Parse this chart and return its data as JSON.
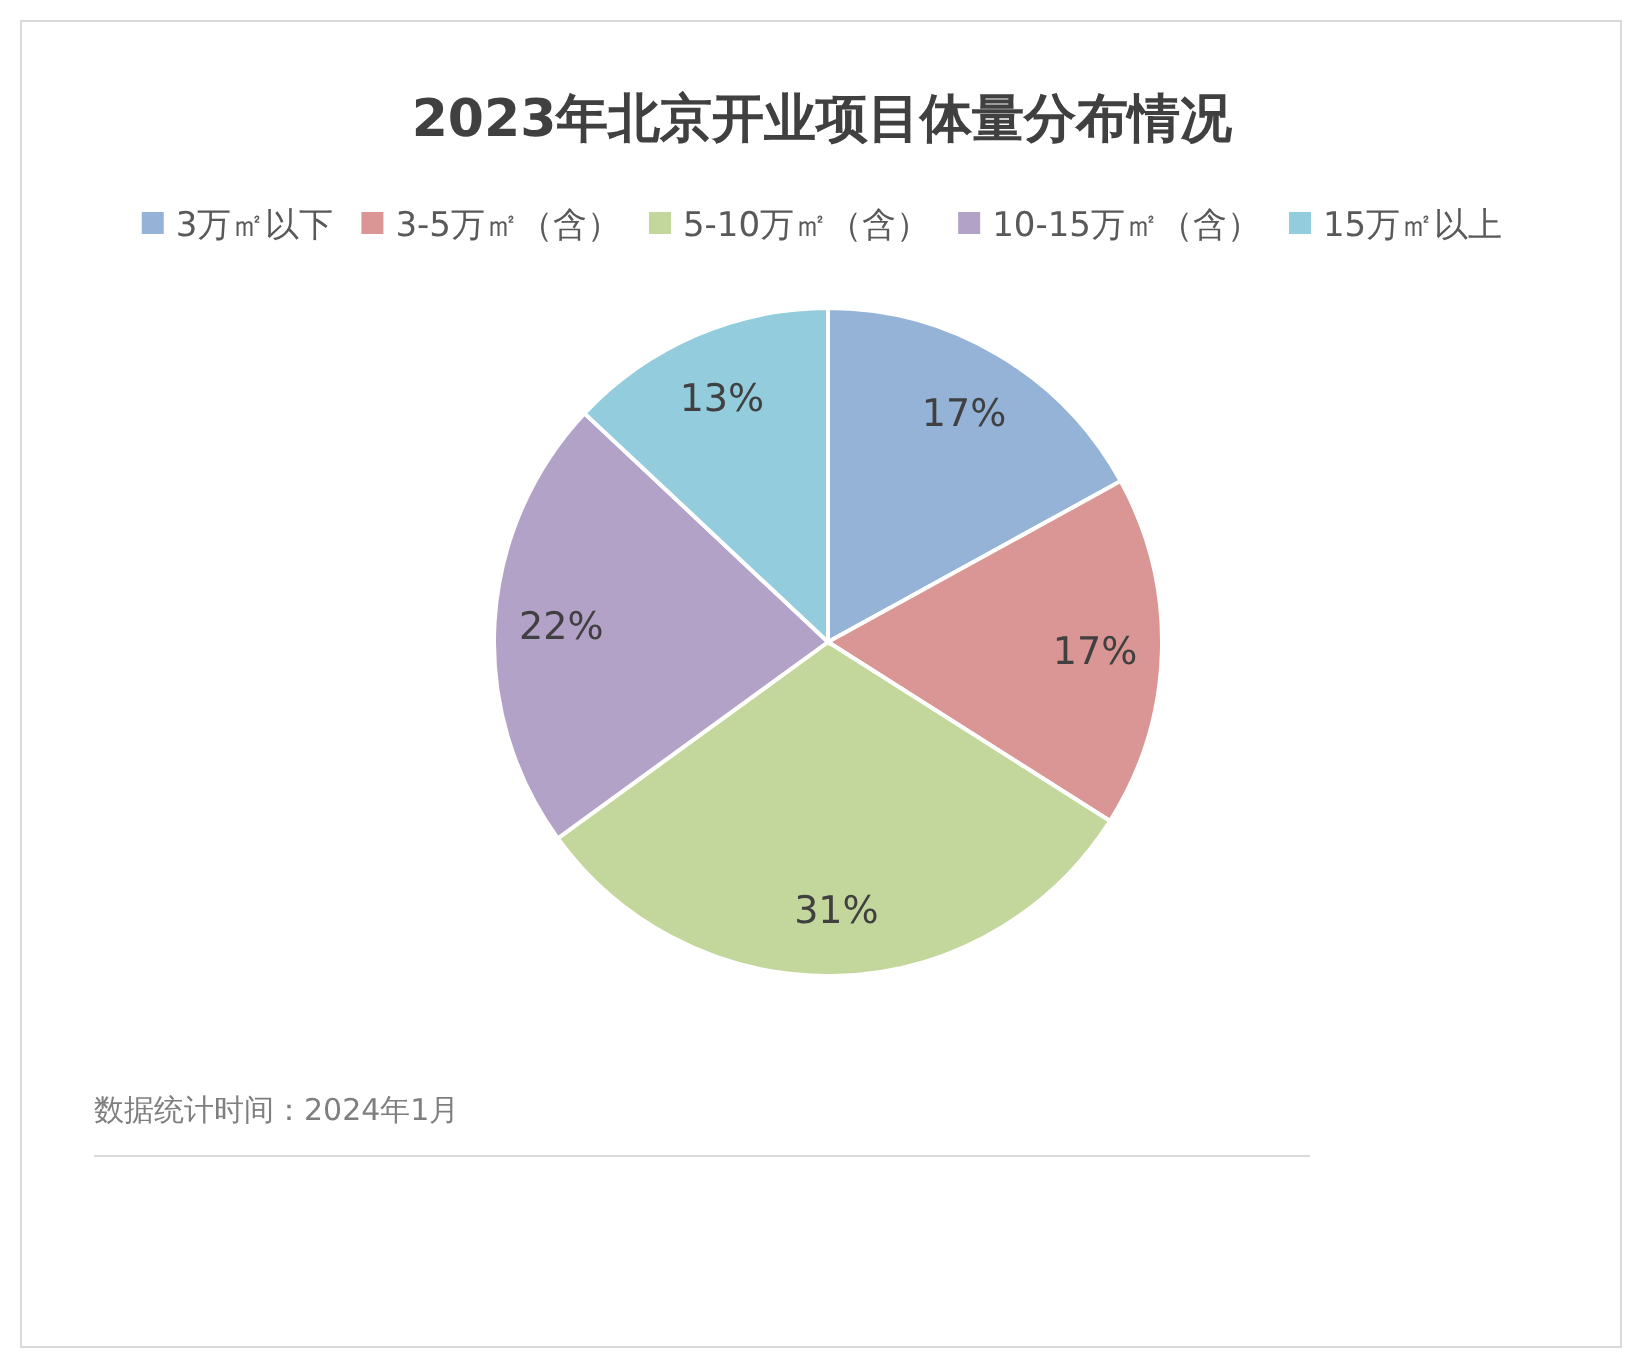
{
  "chart_data": {
    "type": "pie",
    "title": "2023年北京开业项目体量分布情况",
    "categories": [
      "3万㎡以下",
      "3-5万㎡（含）",
      "5-10万㎡（含）",
      "10-15万㎡（含）",
      "15万㎡以上"
    ],
    "values": [
      17,
      17,
      31,
      22,
      13
    ],
    "colors": [
      "#95b3d7",
      "#d99694",
      "#c3d69b",
      "#b3a2c7",
      "#93cddd"
    ],
    "value_labels": [
      "17%",
      "17%",
      "31%",
      "22%",
      "13%"
    ],
    "legend": "top",
    "annotations": [
      "数据统计时间：2024年1月"
    ]
  }
}
